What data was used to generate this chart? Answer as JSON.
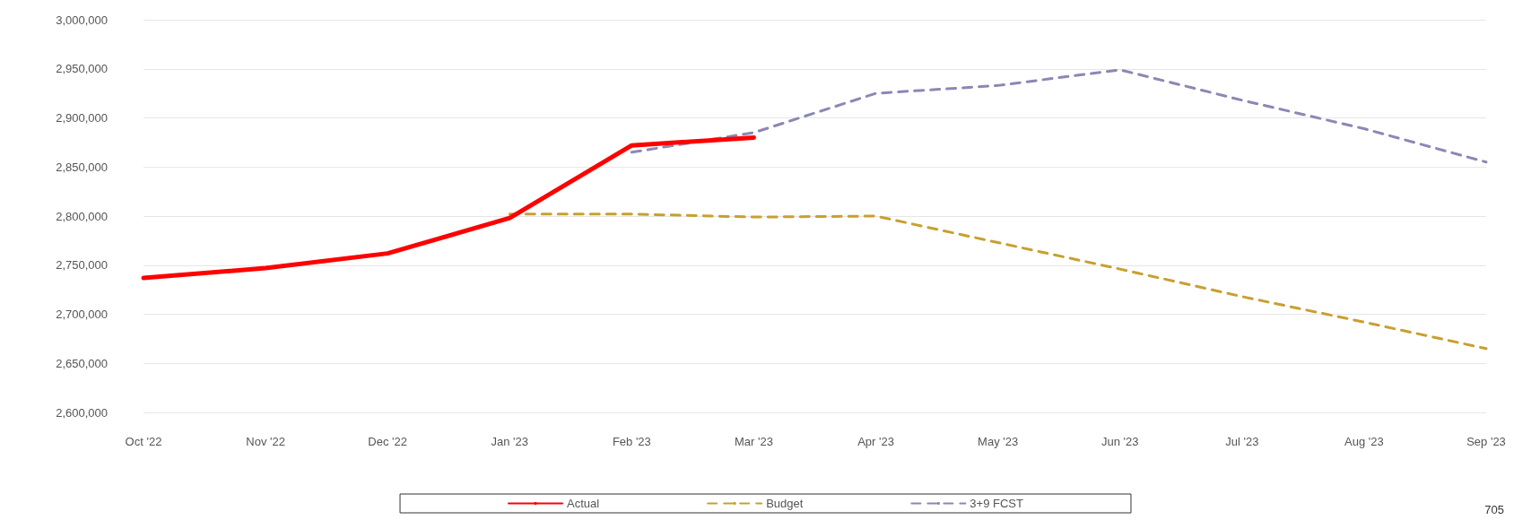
{
  "chart_data": {
    "type": "line",
    "categories": [
      "Oct '22",
      "Nov '22",
      "Dec '22",
      "Jan '23",
      "Feb '23",
      "Mar '23",
      "Apr '23",
      "May '23",
      "Jun '23",
      "Jul '23",
      "Aug '23",
      "Sep '23"
    ],
    "series": [
      {
        "name": "3+9 FCST",
        "color": "#8a88b4",
        "line_style": "dashed",
        "values": [
          null,
          null,
          null,
          null,
          2865000,
          2885000,
          2925000,
          2933000,
          2949000,
          2918000,
          2889000,
          2855000
        ]
      },
      {
        "name": "Budget",
        "color": "#c8a030",
        "line_style": "dashed",
        "values": [
          null,
          null,
          null,
          2802000,
          2802000,
          2799000,
          2800000,
          2773000,
          2746000,
          2718000,
          2692000,
          2665000
        ]
      },
      {
        "name": "Actual",
        "color": "#ff0000",
        "line_style": "solid",
        "values": [
          2737000,
          2747000,
          2762000,
          2798000,
          2872000,
          2880000,
          null,
          null,
          null,
          null,
          null,
          null
        ]
      }
    ],
    "ylim": [
      2600000,
      3000000
    ],
    "yticks": [
      {
        "value": 2600000,
        "label": "2,600,000"
      },
      {
        "value": 2650000,
        "label": "2,650,000"
      },
      {
        "value": 2700000,
        "label": "2,700,000"
      },
      {
        "value": 2750000,
        "label": "2,750,000"
      },
      {
        "value": 2800000,
        "label": "2,800,000"
      },
      {
        "value": 2850000,
        "label": "2,850,000"
      },
      {
        "value": 2900000,
        "label": "2,900,000"
      },
      {
        "value": 2950000,
        "label": "2,950,000"
      },
      {
        "value": 3000000,
        "label": "3,000,000"
      }
    ],
    "grid": "y",
    "legend": "bottom",
    "marker": "none",
    "annotations": [
      "705"
    ]
  }
}
